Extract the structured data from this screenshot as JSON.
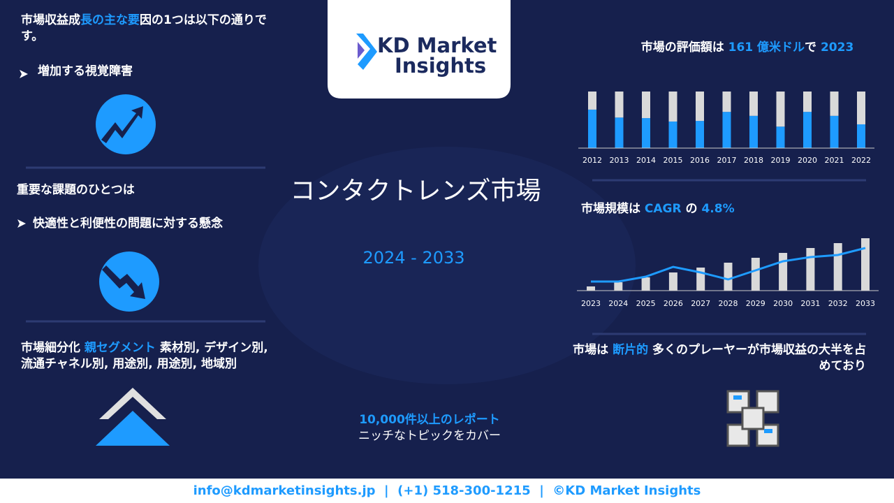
{
  "left": {
    "drivers": {
      "heading_parts": [
        {
          "text": "市場収益成",
          "color": "#ffffff"
        },
        {
          "text": "長の主な要",
          "color": "#1e9bff"
        },
        {
          "text": "因の1つは以下の通りです。",
          "color": "#ffffff"
        }
      ],
      "item": "増加する視覚障害"
    },
    "challenges": {
      "heading": "重要な課題のひとつは",
      "item": "快適性と利便性の問題に対する懸念"
    },
    "segmentation": {
      "parts": [
        {
          "text": "市場細分化 ",
          "color": "#ffffff"
        },
        {
          "text": "親セグメント",
          "color": "#1e9bff"
        },
        {
          "text": " 素材別, デザイン別, 流通チャネル別, 用途別, 用途別, 地域別",
          "color": "#ffffff"
        }
      ]
    }
  },
  "logo": {
    "lines": [
      "KD Market",
      "Insights"
    ]
  },
  "center": {
    "title": "コンタクトレンズ市場",
    "period": "2024 - 2033",
    "reports": "10,000件以上のレポート",
    "coverage": "ニッチなトピックをカバー"
  },
  "right": {
    "valuation_parts": [
      {
        "text": "市場の評価額は ",
        "color": "#ffffff"
      },
      {
        "text": "161 億米ドル",
        "color": "#1e9bff"
      },
      {
        "text": "で ",
        "color": "#ffffff"
      },
      {
        "text": "2023",
        "color": "#1e9bff"
      }
    ],
    "cagr_parts": [
      {
        "text": "市場規模は ",
        "color": "#ffffff"
      },
      {
        "text": "CAGR",
        "color": "#1e9bff"
      },
      {
        "text": " の ",
        "color": "#ffffff"
      },
      {
        "text": "4.8%",
        "color": "#1e9bff"
      }
    ],
    "fragmented_parts": [
      {
        "text": "市場は ",
        "color": "#ffffff"
      },
      {
        "text": "断片的",
        "color": "#1e9bff"
      },
      {
        "text": " 多くのプレーヤーが市場収益の大半を占めており",
        "color": "#ffffff"
      }
    ]
  },
  "chart_data": [
    {
      "type": "stacked_bar",
      "categories": [
        "2012",
        "2013",
        "2014",
        "2015",
        "2016",
        "2017",
        "2018",
        "2019",
        "2020",
        "2021",
        "2022"
      ],
      "series": [
        {
          "color": "#1e9bff",
          "values": [
            68,
            54,
            53,
            47,
            48,
            64,
            57,
            38,
            64,
            57,
            42
          ]
        },
        {
          "color": "#d9d9d9",
          "values": [
            32,
            46,
            47,
            53,
            52,
            36,
            43,
            62,
            36,
            43,
            58
          ]
        }
      ],
      "ylim": [
        0,
        100
      ]
    },
    {
      "type": "bar_line",
      "categories": [
        "2023",
        "2024",
        "2025",
        "2026",
        "2027",
        "2028",
        "2029",
        "2030",
        "2031",
        "2032",
        "2033"
      ],
      "series": [
        {
          "type": "bar",
          "color": "#d9d9d9",
          "values": [
            6,
            12,
            19,
            26,
            33,
            40,
            47,
            54,
            61,
            68,
            75
          ]
        },
        {
          "type": "line",
          "color": "#1e9bff",
          "values": [
            13,
            13,
            20,
            34,
            26,
            16,
            29,
            42,
            48,
            51,
            61
          ]
        }
      ],
      "ylim": [
        0,
        80
      ]
    }
  ],
  "footer": "info@kdmarketinsights.jp  |  (+1) 518-300-1215  |  ©KD Market Insights"
}
